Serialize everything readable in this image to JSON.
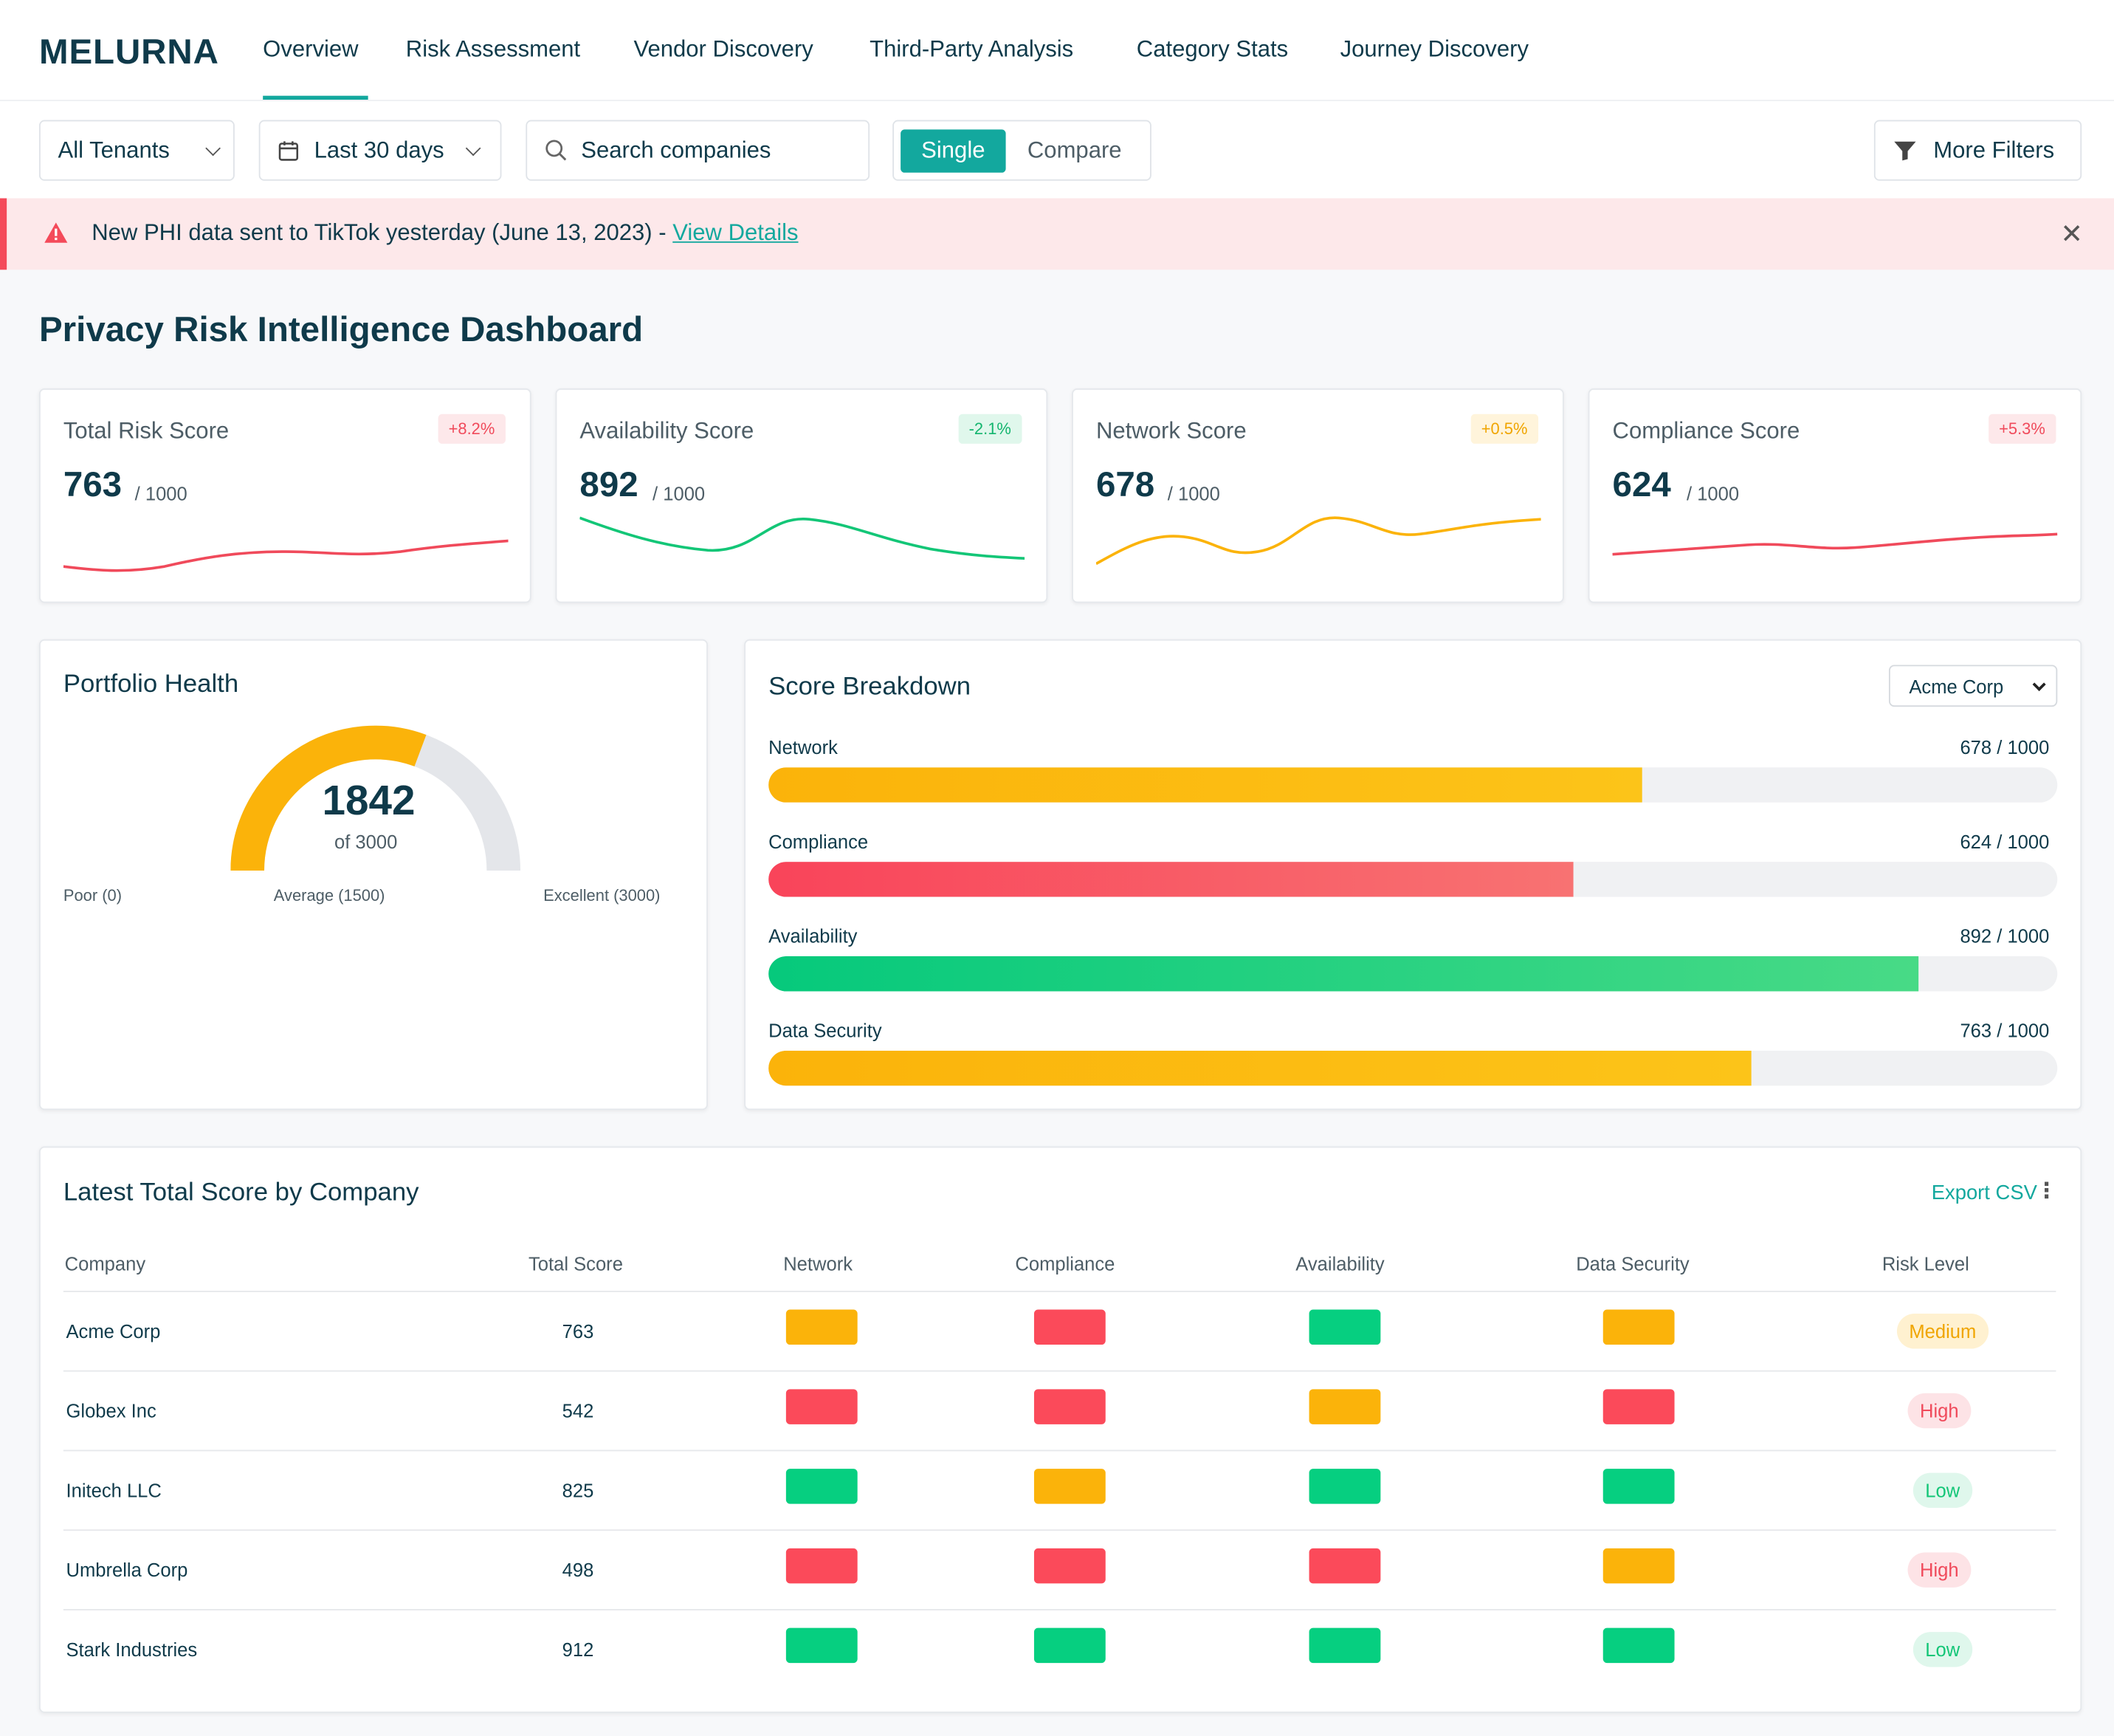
{
  "app": {
    "logo": "MELURNA"
  },
  "nav": {
    "items": [
      "Overview",
      "Risk Assessment",
      "Vendor Discovery",
      "Third-Party Analysis",
      "Category Stats",
      "Journey Discovery"
    ],
    "active": "Overview"
  },
  "filters": {
    "tenant": "All Tenants",
    "date_range": "Last 30 days",
    "search_placeholder": "Search companies",
    "mode_single": "Single",
    "mode_compare": "Compare",
    "more_filters": "More Filters"
  },
  "alert": {
    "message": "New PHI data sent to TikTok yesterday (June 13, 2023) - ",
    "link": "View Details"
  },
  "page": {
    "title": "Privacy Risk Intelligence Dashboard"
  },
  "kpis": [
    {
      "label": "Total Risk Score",
      "value": "763",
      "unit": "/ 1000",
      "change": "+8.2%",
      "color": "#f04a5b",
      "badge_bg": "#fde8ea",
      "badge_fg": "#f04a5b"
    },
    {
      "label": "Availability Score",
      "value": "892",
      "unit": "/ 1000",
      "change": "-2.1%",
      "color": "#13c677",
      "badge_bg": "#e0f7ec",
      "badge_fg": "#13b56e"
    },
    {
      "label": "Network Score",
      "value": "678",
      "unit": "/ 1000",
      "change": "+0.5%",
      "color": "#fbb30a",
      "badge_bg": "#fff4db",
      "badge_fg": "#f0a500"
    },
    {
      "label": "Compliance Score",
      "value": "624",
      "unit": "/ 1000",
      "change": "+5.3%",
      "color": "#f04a5b",
      "badge_bg": "#fde8ea",
      "badge_fg": "#f04a5b"
    }
  ],
  "portfolio": {
    "title": "Portfolio Health",
    "value": "1842",
    "of": "of 3000",
    "fraction": 0.614,
    "label_poor": "Poor (0)",
    "label_average": "Average (1500)",
    "label_excellent": "Excellent (3000)"
  },
  "breakdown": {
    "title": "Score Breakdown",
    "company": "Acme Corp",
    "items": [
      {
        "label": "Network",
        "value": "678 / 1000",
        "fraction": 0.678,
        "from": "#fbb30a",
        "to": "#fcc419"
      },
      {
        "label": "Compliance",
        "value": "624 / 1000",
        "fraction": 0.624,
        "from": "#f9445a",
        "to": "#f87272"
      },
      {
        "label": "Availability",
        "value": "892 / 1000",
        "fraction": 0.892,
        "from": "#06c97c",
        "to": "#48da86"
      },
      {
        "label": "Data Security",
        "value": "763 / 1000",
        "fraction": 0.763,
        "from": "#fbb30a",
        "to": "#fcc419"
      }
    ]
  },
  "table": {
    "title": "Latest Total Score by Company",
    "export": "Export CSV",
    "columns": [
      "Company",
      "Total Score",
      "Network",
      "Compliance",
      "Availability",
      "Data Security",
      "Risk Level"
    ],
    "rows": [
      {
        "company": "Acme Corp",
        "score": "763",
        "network": "medium",
        "compliance": "high",
        "availability": "low",
        "security": "medium",
        "risk": "Medium"
      },
      {
        "company": "Globex Inc",
        "score": "542",
        "network": "high",
        "compliance": "high",
        "availability": "medium",
        "security": "high",
        "risk": "High"
      },
      {
        "company": "Initech LLC",
        "score": "825",
        "network": "low",
        "compliance": "medium",
        "availability": "low",
        "security": "low",
        "risk": "Low"
      },
      {
        "company": "Umbrella Corp",
        "score": "498",
        "network": "high",
        "compliance": "high",
        "availability": "high",
        "security": "medium",
        "risk": "High"
      },
      {
        "company": "Stark Industries",
        "score": "912",
        "network": "low",
        "compliance": "low",
        "availability": "low",
        "security": "low",
        "risk": "Low"
      }
    ]
  },
  "colors": {
    "accent": "#13a89e",
    "status_low": "#06cf80",
    "status_medium": "#fbb30a",
    "status_high": "#fb4a5a",
    "risk_low_bg": "#dff7ec",
    "risk_low_fg": "#13c677",
    "risk_medium_bg": "#fff1d0",
    "risk_medium_fg": "#f0a500",
    "risk_high_bg": "#fde3e6",
    "risk_high_fg": "#f04a5b"
  }
}
